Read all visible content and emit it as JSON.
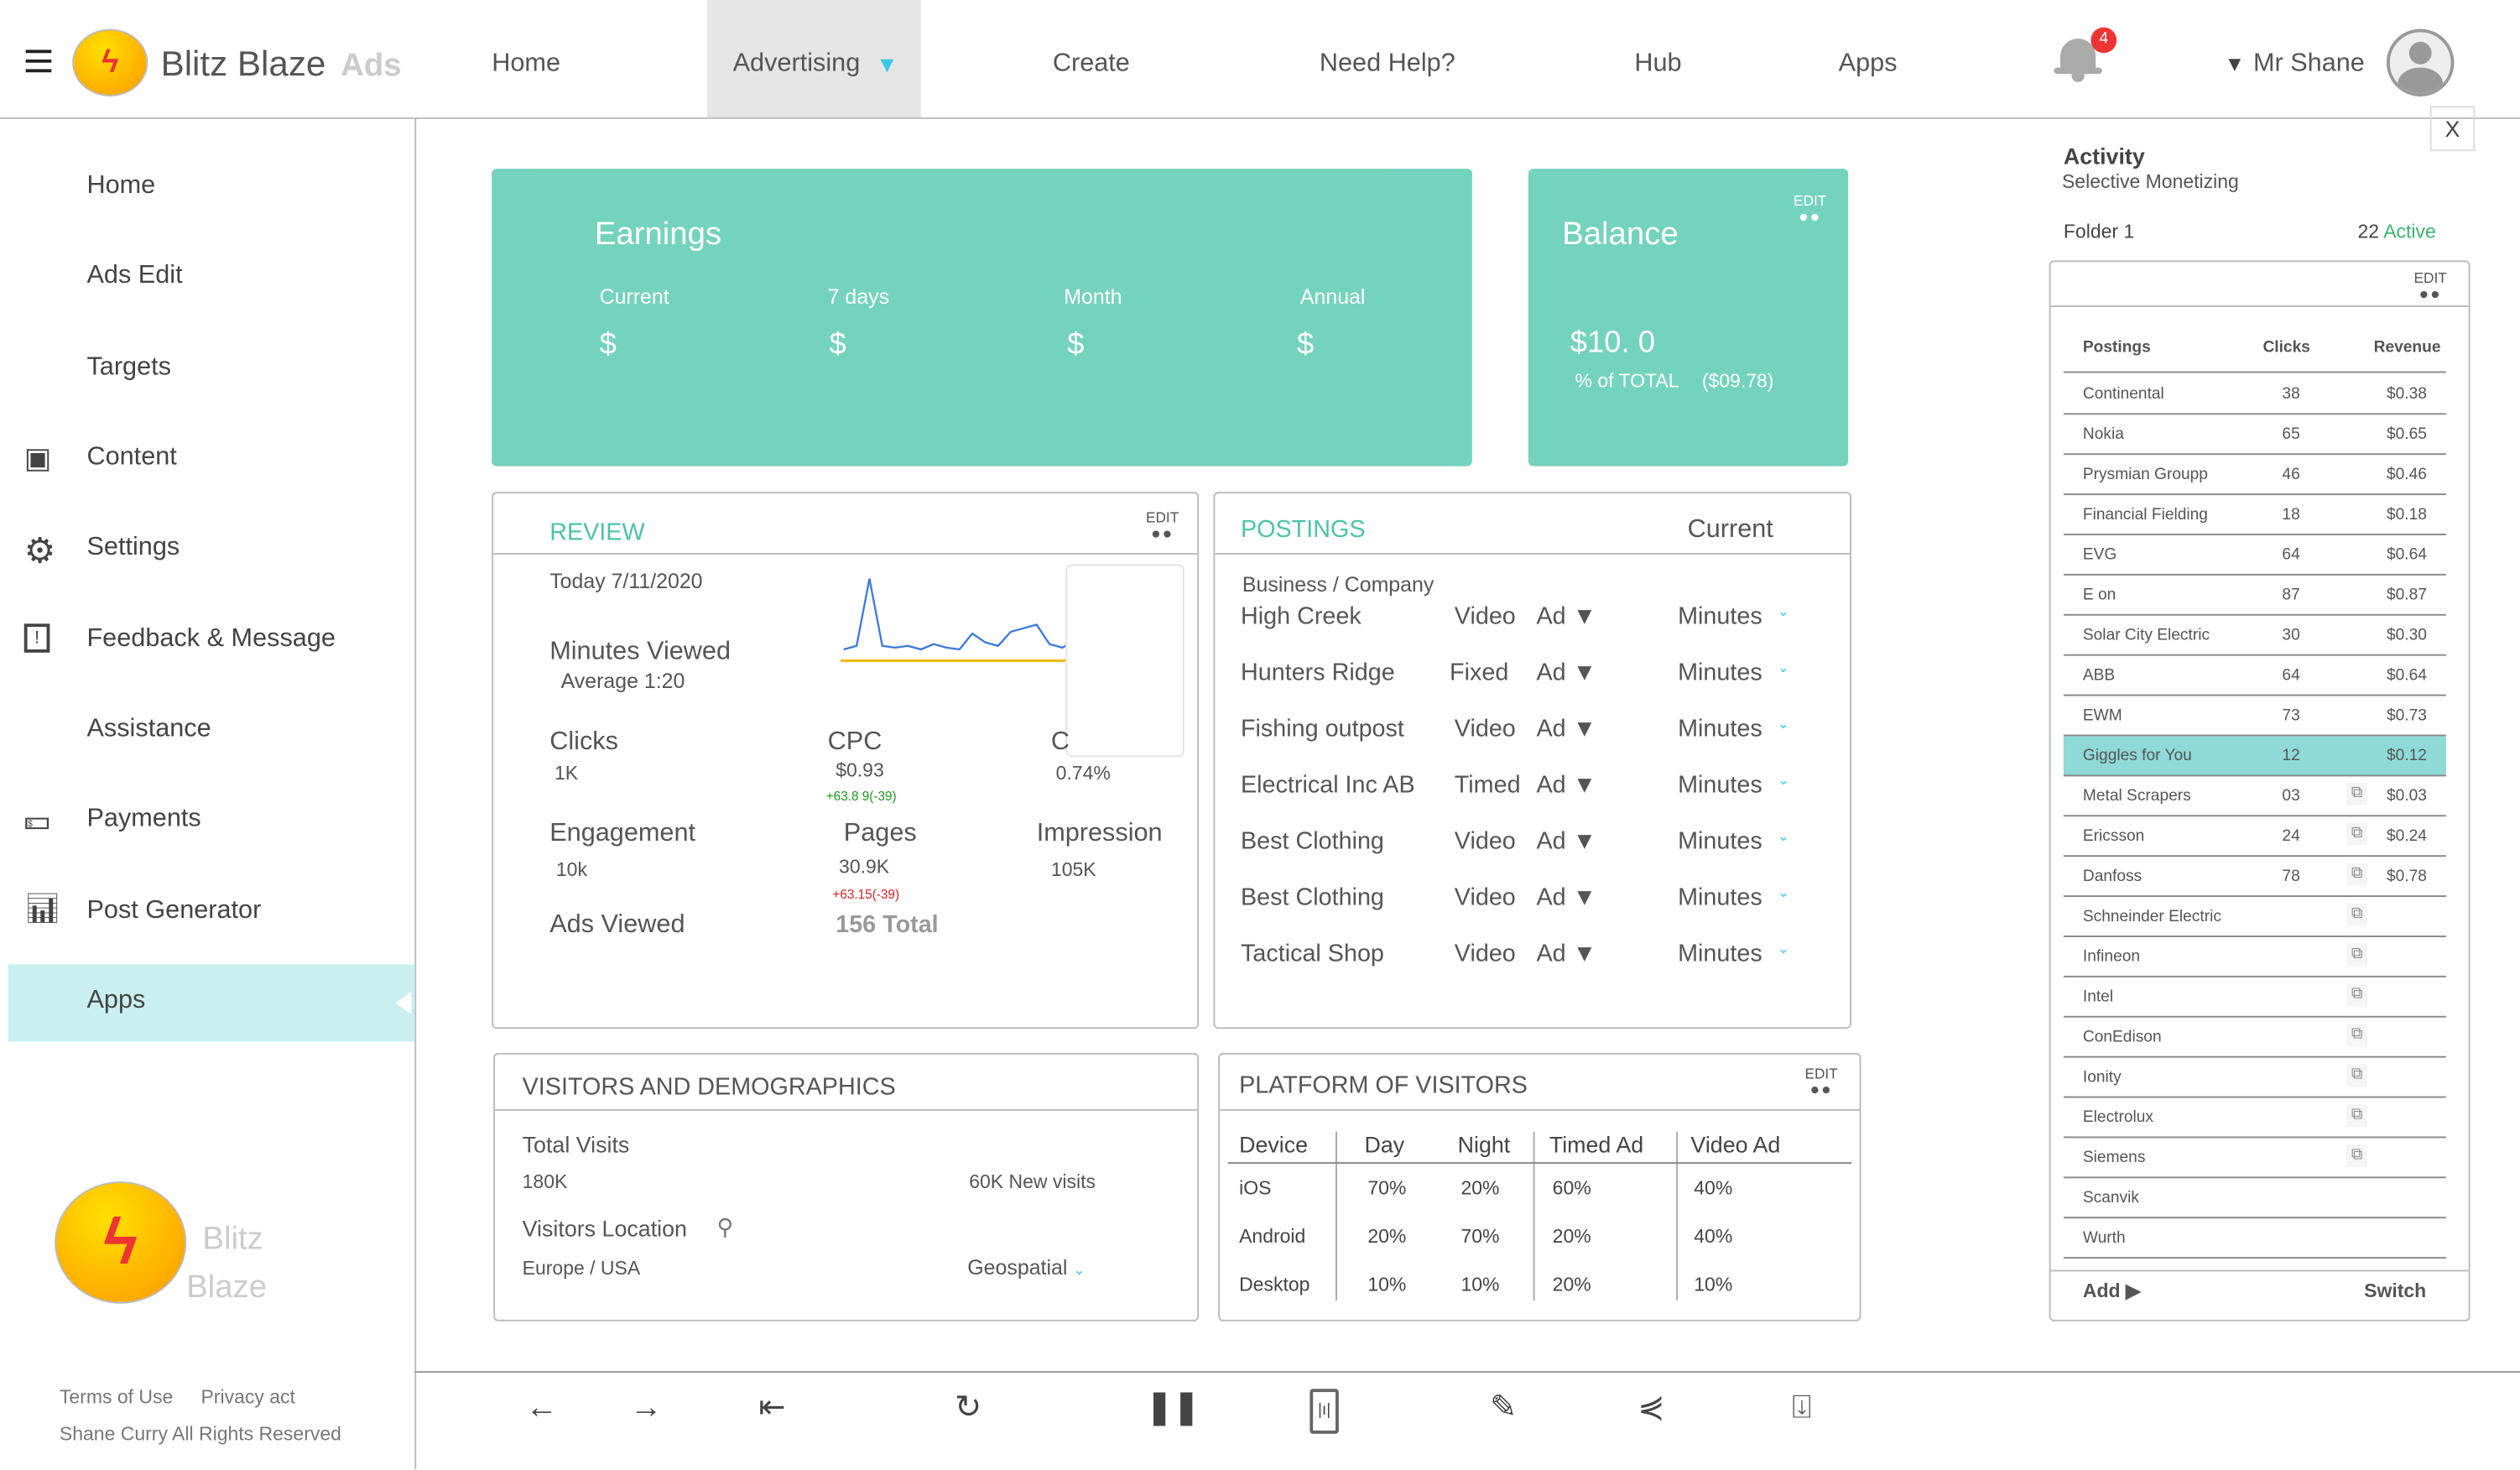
{
  "header": {
    "brand": "Blitz Blaze",
    "brand_suffix": "Ads",
    "nav": [
      "Home",
      "Advertising",
      "Create",
      "Need Help?",
      "Hub",
      "Apps"
    ],
    "notification_count": "4",
    "user": "Mr Shane"
  },
  "sidebar": {
    "items": [
      "Home",
      "Ads Edit",
      "Targets",
      "Content",
      "Settings",
      "Feedback & Message",
      "Assistance",
      "Payments",
      "Post Generator",
      "Apps"
    ],
    "logo_text_1": "Blitz",
    "logo_text_2": "Blaze",
    "footer_terms": "Terms of Use",
    "footer_privacy": "Privacy act",
    "footer_copyright": "Shane Curry All Rights Reserved"
  },
  "earnings": {
    "title": "Earnings",
    "columns": [
      {
        "label": "Current",
        "value": "$"
      },
      {
        "label": "7 days",
        "value": "$"
      },
      {
        "label": "Month",
        "value": "$"
      },
      {
        "label": "Annual",
        "value": "$"
      }
    ]
  },
  "balance": {
    "title": "Balance",
    "edit": "EDIT",
    "amount": "$10. 0",
    "pct_label": "% of TOTAL",
    "total": "($09.78)"
  },
  "review": {
    "title": "REVIEW",
    "edit": "EDIT",
    "today": "Today  7/11/2020",
    "minutes_label": "Minutes Viewed",
    "average": "Average  1:20",
    "clicks_label": "Clicks",
    "clicks": "1K",
    "cpc_label": "CPC",
    "cpc": "$0.93",
    "cpc_change": "+63.8 9(-39)",
    "ctr_label": "C",
    "ctr": "0.74%",
    "engagement_label": "Engagement",
    "engagement": "10k",
    "pages_label": "Pages",
    "pages": "30.9K",
    "pages_change": "+63.15(-39)",
    "impression_label": "Impression",
    "impression": "105K",
    "ads_viewed_label": "Ads Viewed",
    "ads_viewed": "156 Total",
    "sparkline": [
      10,
      12,
      50,
      12,
      11,
      12,
      10,
      13,
      11,
      10,
      19,
      14,
      12,
      20,
      22,
      24,
      13,
      11,
      15
    ]
  },
  "postings": {
    "title": "POSTINGS",
    "current": "Current",
    "subtitle": "Business / Company",
    "rows": [
      {
        "name": "High Creek",
        "type": "Video",
        "ad": "Ad ▼",
        "unit": "Minutes"
      },
      {
        "name": "Hunters Ridge",
        "type": "Fixed",
        "ad": "Ad ▼",
        "unit": "Minutes"
      },
      {
        "name": "Fishing outpost",
        "type": "Video",
        "ad": "Ad ▼",
        "unit": "Minutes"
      },
      {
        "name": "Electrical Inc AB",
        "type": "Timed",
        "ad": "Ad ▼",
        "unit": "Minutes"
      },
      {
        "name": "Best Clothing",
        "type": "Video",
        "ad": "Ad ▼",
        "unit": "Minutes"
      },
      {
        "name": "Best Clothing",
        "type": "Video",
        "ad": "Ad ▼",
        "unit": "Minutes"
      },
      {
        "name": "Tactical Shop",
        "type": "Video",
        "ad": "Ad ▼",
        "unit": "Minutes"
      }
    ]
  },
  "visitors": {
    "title": "VISITORS AND DEMOGRAPHICS",
    "total_label": "Total Visits",
    "total": "180K",
    "new_visits": "60K New visits",
    "location_label": "Visitors Location",
    "location": "Europe / USA",
    "geo": "Geospatial"
  },
  "platform": {
    "title": "PLATFORM OF VISITORS",
    "edit": "EDIT",
    "headers": [
      "Device",
      "Day",
      "Night",
      "Timed Ad",
      "Video Ad"
    ],
    "rows": [
      [
        "iOS",
        "70%",
        "20%",
        "60%",
        "40%"
      ],
      [
        "Android",
        "20%",
        "70%",
        "20%",
        "40%"
      ],
      [
        "Desktop",
        "10%",
        "10%",
        "20%",
        "10%"
      ]
    ]
  },
  "activity": {
    "close": "X",
    "title": "Activity",
    "subtitle": "Selective Monetizing",
    "folder": "Folder 1",
    "active_count": "22",
    "active_label": "Active",
    "edit": "EDIT",
    "headers": [
      "Postings",
      "Clicks",
      "Revenue"
    ],
    "rows": [
      [
        "Continental",
        "38",
        "$0.38"
      ],
      [
        "Nokia",
        "65",
        "$0.65"
      ],
      [
        "Prysmian Groupp",
        "46",
        "$0.46"
      ],
      [
        "Financial Fielding",
        "18",
        "$0.18"
      ],
      [
        "EVG",
        "64",
        "$0.64"
      ],
      [
        "E on",
        "87",
        "$0.87"
      ],
      [
        "Solar City Electric",
        "30",
        "$0.30"
      ],
      [
        "ABB",
        "64",
        "$0.64"
      ],
      [
        "EWM",
        "73",
        "$0.73"
      ],
      [
        "Giggles for You",
        "12",
        "$0.12"
      ],
      [
        "Metal Scrapers",
        "03",
        "$0.03"
      ],
      [
        "Ericsson",
        "24",
        "$0.24"
      ],
      [
        "Danfoss",
        "78",
        "$0.78"
      ],
      [
        "Schneinder Electric",
        "",
        ""
      ],
      [
        "Infineon",
        "",
        ""
      ],
      [
        "Intel",
        "",
        ""
      ],
      [
        "ConEdison",
        "",
        ""
      ],
      [
        "Ionity",
        "",
        ""
      ],
      [
        "Electrolux",
        "",
        ""
      ],
      [
        "Siemens",
        "",
        ""
      ],
      [
        "Scanvik",
        "",
        ""
      ],
      [
        "Wurth",
        "",
        ""
      ]
    ],
    "selected_row": "Giggles for You",
    "add": "Add ▶",
    "switch": "Switch"
  },
  "colors": {
    "accent": "#74d3bd",
    "highlight": "#8fdad8",
    "sidebar_active": "#c9eff1"
  }
}
